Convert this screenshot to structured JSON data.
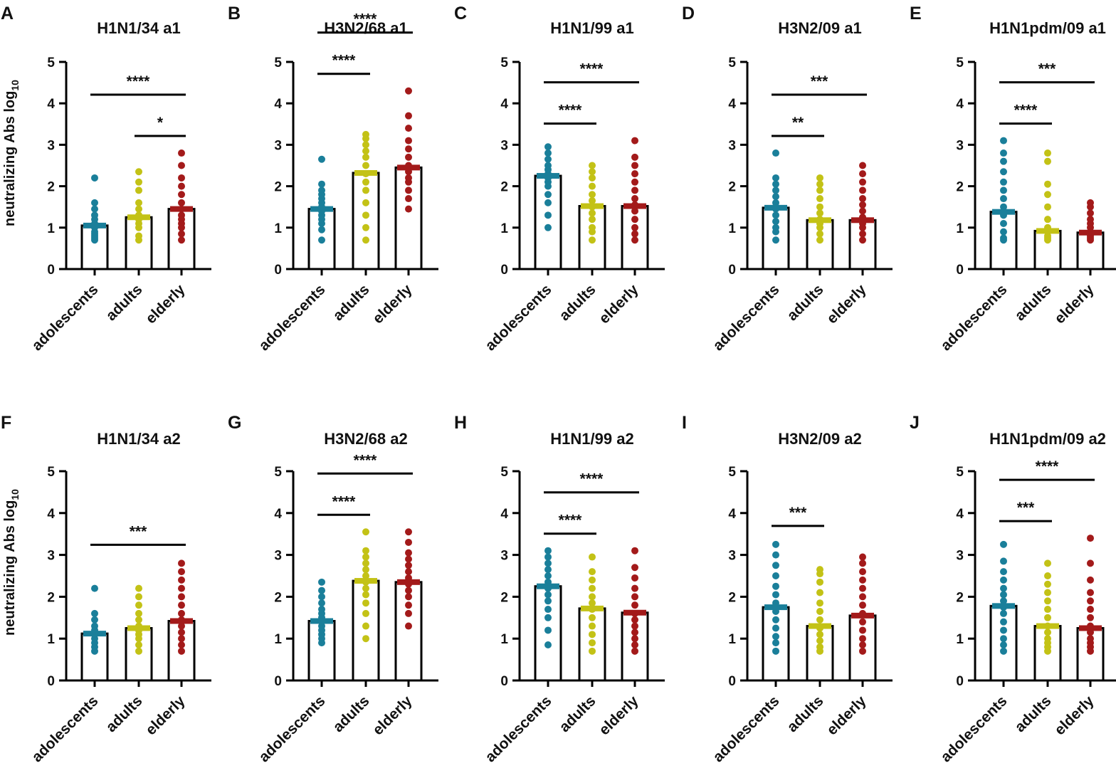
{
  "colors": {
    "adolescents": "#1a7f9a",
    "adults": "#c3c216",
    "elderly": "#a31a1a",
    "axis": "#000000"
  },
  "y_label": {
    "main": "neutralizing Abs log",
    "subscript": "10"
  },
  "chart_data": [
    {
      "letter": "A",
      "title": "H1N1/34 a1",
      "type": "bar",
      "categories": [
        "adolescents",
        "adults",
        "elderly"
      ],
      "ylim": [
        0,
        5
      ],
      "yticks": [
        0,
        1,
        2,
        3,
        4,
        5
      ],
      "values": [
        1.05,
        1.25,
        1.45
      ],
      "points": [
        [
          0.7,
          0.75,
          0.8,
          0.85,
          0.9,
          1.0,
          1.05,
          1.1,
          1.2,
          1.3,
          1.45,
          1.6,
          2.2
        ],
        [
          0.7,
          0.8,
          1.0,
          1.1,
          1.2,
          1.3,
          1.45,
          1.6,
          1.9,
          2.1,
          2.35
        ],
        [
          0.7,
          0.85,
          1.0,
          1.1,
          1.2,
          1.3,
          1.45,
          1.6,
          1.8,
          2.0,
          2.2,
          2.5,
          2.8
        ]
      ],
      "significance": [
        {
          "from": 0,
          "to": 2,
          "label": "****"
        },
        {
          "from": 1,
          "to": 2,
          "label": "*"
        }
      ]
    },
    {
      "letter": "B",
      "title": "H3N2/68 a1",
      "type": "bar",
      "categories": [
        "adolescents",
        "adults",
        "elderly"
      ],
      "ylim": [
        0,
        5
      ],
      "yticks": [
        0,
        1,
        2,
        3,
        4,
        5
      ],
      "values": [
        1.45,
        2.32,
        2.45
      ],
      "points": [
        [
          0.7,
          0.95,
          1.1,
          1.2,
          1.3,
          1.4,
          1.5,
          1.6,
          1.7,
          1.8,
          1.9,
          2.05,
          2.65
        ],
        [
          0.7,
          1.0,
          1.3,
          1.6,
          1.9,
          2.1,
          2.3,
          2.5,
          2.7,
          2.85,
          3.0,
          3.15,
          3.25
        ],
        [
          1.45,
          1.7,
          1.9,
          2.1,
          2.2,
          2.35,
          2.5,
          2.7,
          2.9,
          3.1,
          3.4,
          3.7,
          4.3
        ]
      ],
      "significance": [
        {
          "from": 0,
          "to": 1,
          "label": "****"
        },
        {
          "from": 0,
          "to": 2,
          "label": "****"
        }
      ]
    },
    {
      "letter": "C",
      "title": "H1N1/99 a1",
      "type": "bar",
      "categories": [
        "adolescents",
        "adults",
        "elderly"
      ],
      "ylim": [
        0,
        5
      ],
      "yticks": [
        0,
        1,
        2,
        3,
        4,
        5
      ],
      "values": [
        2.25,
        1.52,
        1.52
      ],
      "points": [
        [
          1.0,
          1.3,
          1.6,
          1.8,
          2.0,
          2.1,
          2.2,
          2.3,
          2.4,
          2.5,
          2.65,
          2.8,
          2.95
        ],
        [
          0.7,
          0.9,
          1.0,
          1.2,
          1.35,
          1.5,
          1.65,
          1.8,
          2.0,
          2.2,
          2.35,
          2.5
        ],
        [
          0.7,
          0.85,
          1.0,
          1.2,
          1.4,
          1.55,
          1.7,
          1.9,
          2.1,
          2.3,
          2.5,
          2.7,
          3.1
        ]
      ],
      "significance": [
        {
          "from": 0,
          "to": 1,
          "label": "****"
        },
        {
          "from": 0,
          "to": 2,
          "label": "****"
        }
      ]
    },
    {
      "letter": "D",
      "title": "H3N2/09 a1",
      "type": "bar",
      "categories": [
        "adolescents",
        "adults",
        "elderly"
      ],
      "ylim": [
        0,
        5
      ],
      "yticks": [
        0,
        1,
        2,
        3,
        4,
        5
      ],
      "values": [
        1.48,
        1.18,
        1.18
      ],
      "points": [
        [
          0.7,
          0.9,
          1.0,
          1.15,
          1.3,
          1.45,
          1.6,
          1.75,
          1.9,
          2.05,
          2.2,
          2.8
        ],
        [
          0.7,
          0.85,
          1.0,
          1.1,
          1.2,
          1.35,
          1.5,
          1.7,
          1.9,
          2.05,
          2.2
        ],
        [
          0.7,
          0.85,
          1.0,
          1.1,
          1.25,
          1.4,
          1.55,
          1.7,
          1.9,
          2.1,
          2.3,
          2.5
        ]
      ],
      "significance": [
        {
          "from": 0,
          "to": 1,
          "label": "**"
        },
        {
          "from": 0,
          "to": 2,
          "label": "***"
        }
      ]
    },
    {
      "letter": "E",
      "title": "H1N1pdm/09 a1",
      "type": "bar",
      "categories": [
        "adolescents",
        "adults",
        "elderly"
      ],
      "ylim": [
        0,
        5
      ],
      "yticks": [
        0,
        1,
        2,
        3,
        4,
        5
      ],
      "values": [
        1.38,
        0.92,
        0.88
      ],
      "points": [
        [
          0.7,
          0.75,
          0.9,
          1.1,
          1.3,
          1.5,
          1.7,
          1.9,
          2.1,
          2.35,
          2.6,
          2.8,
          3.1
        ],
        [
          0.7,
          0.75,
          0.8,
          0.9,
          1.0,
          1.2,
          1.5,
          1.8,
          2.05,
          2.6,
          2.8
        ],
        [
          0.7,
          0.75,
          0.8,
          0.9,
          1.0,
          1.1,
          1.2,
          1.35,
          1.5,
          1.6
        ]
      ],
      "significance": [
        {
          "from": 0,
          "to": 1,
          "label": "****"
        },
        {
          "from": 0,
          "to": 2,
          "label": "***"
        }
      ]
    },
    {
      "letter": "F",
      "title": "H1N1/34 a2",
      "type": "bar",
      "categories": [
        "adolescents",
        "adults",
        "elderly"
      ],
      "ylim": [
        0,
        5
      ],
      "yticks": [
        0,
        1,
        2,
        3,
        4,
        5
      ],
      "values": [
        1.12,
        1.25,
        1.42
      ],
      "points": [
        [
          0.7,
          0.8,
          0.9,
          1.0,
          1.1,
          1.2,
          1.3,
          1.45,
          1.6,
          2.2
        ],
        [
          0.7,
          0.85,
          1.0,
          1.1,
          1.2,
          1.3,
          1.45,
          1.6,
          1.8,
          2.0,
          2.2
        ],
        [
          0.7,
          0.85,
          1.0,
          1.15,
          1.3,
          1.45,
          1.6,
          1.8,
          2.0,
          2.2,
          2.4,
          2.6,
          2.8
        ]
      ],
      "significance": [
        {
          "from": 0,
          "to": 2,
          "label": "***"
        }
      ]
    },
    {
      "letter": "G",
      "title": "H3N2/68 a2",
      "type": "bar",
      "categories": [
        "adolescents",
        "adults",
        "elderly"
      ],
      "ylim": [
        0,
        5
      ],
      "yticks": [
        0,
        1,
        2,
        3,
        4,
        5
      ],
      "values": [
        1.42,
        2.38,
        2.35
      ],
      "points": [
        [
          0.9,
          1.0,
          1.1,
          1.2,
          1.3,
          1.4,
          1.5,
          1.6,
          1.7,
          1.85,
          2.0,
          2.15,
          2.35
        ],
        [
          1.0,
          1.3,
          1.6,
          1.85,
          2.05,
          2.2,
          2.35,
          2.5,
          2.65,
          2.8,
          2.95,
          3.1,
          3.55
        ],
        [
          1.3,
          1.6,
          1.8,
          2.0,
          2.15,
          2.3,
          2.45,
          2.6,
          2.75,
          2.9,
          3.05,
          3.3,
          3.55
        ]
      ],
      "significance": [
        {
          "from": 0,
          "to": 1,
          "label": "****"
        },
        {
          "from": 0,
          "to": 2,
          "label": "****"
        }
      ]
    },
    {
      "letter": "H",
      "title": "H1N1/99 a2",
      "type": "bar",
      "categories": [
        "adolescents",
        "adults",
        "elderly"
      ],
      "ylim": [
        0,
        5
      ],
      "yticks": [
        0,
        1,
        2,
        3,
        4,
        5
      ],
      "values": [
        2.25,
        1.72,
        1.62
      ],
      "points": [
        [
          0.85,
          1.2,
          1.5,
          1.7,
          1.9,
          2.05,
          2.2,
          2.35,
          2.5,
          2.65,
          2.8,
          2.95,
          3.1
        ],
        [
          0.7,
          0.9,
          1.1,
          1.3,
          1.5,
          1.7,
          1.85,
          2.0,
          2.2,
          2.4,
          2.6,
          2.95
        ],
        [
          0.7,
          0.85,
          1.0,
          1.15,
          1.3,
          1.45,
          1.6,
          1.8,
          2.0,
          2.2,
          2.45,
          2.7,
          3.1
        ]
      ],
      "significance": [
        {
          "from": 0,
          "to": 1,
          "label": "****"
        },
        {
          "from": 0,
          "to": 2,
          "label": "****"
        }
      ]
    },
    {
      "letter": "I",
      "title": "H3N2/09 a2",
      "type": "bar",
      "categories": [
        "adolescents",
        "adults",
        "elderly"
      ],
      "ylim": [
        0,
        5
      ],
      "yticks": [
        0,
        1,
        2,
        3,
        4,
        5
      ],
      "values": [
        1.75,
        1.3,
        1.55
      ],
      "points": [
        [
          0.7,
          0.9,
          1.05,
          1.25,
          1.45,
          1.65,
          1.85,
          2.05,
          2.25,
          2.5,
          2.75,
          3.0,
          3.25
        ],
        [
          0.7,
          0.8,
          0.95,
          1.1,
          1.25,
          1.45,
          1.65,
          1.85,
          2.1,
          2.35,
          2.55,
          2.65
        ],
        [
          0.7,
          0.85,
          1.0,
          1.2,
          1.4,
          1.6,
          1.8,
          2.0,
          2.2,
          2.4,
          2.6,
          2.8,
          2.95
        ]
      ],
      "significance": [
        {
          "from": 0,
          "to": 1,
          "label": "***"
        }
      ]
    },
    {
      "letter": "J",
      "title": "H1N1pdm/09 a2",
      "type": "bar",
      "categories": [
        "adolescents",
        "adults",
        "elderly"
      ],
      "ylim": [
        0,
        5
      ],
      "yticks": [
        0,
        1,
        2,
        3,
        4,
        5
      ],
      "values": [
        1.78,
        1.3,
        1.25
      ],
      "points": [
        [
          0.7,
          0.85,
          1.0,
          1.2,
          1.4,
          1.6,
          1.75,
          1.9,
          2.05,
          2.2,
          2.4,
          2.6,
          2.85,
          3.25
        ],
        [
          0.7,
          0.8,
          0.9,
          1.0,
          1.15,
          1.3,
          1.5,
          1.7,
          1.9,
          2.1,
          2.3,
          2.5,
          2.8
        ],
        [
          0.7,
          0.8,
          0.9,
          1.0,
          1.15,
          1.3,
          1.5,
          1.7,
          1.9,
          2.1,
          2.4,
          2.8,
          3.4
        ]
      ],
      "significance": [
        {
          "from": 0,
          "to": 1,
          "label": "***"
        },
        {
          "from": 0,
          "to": 2,
          "label": "****"
        }
      ]
    }
  ]
}
